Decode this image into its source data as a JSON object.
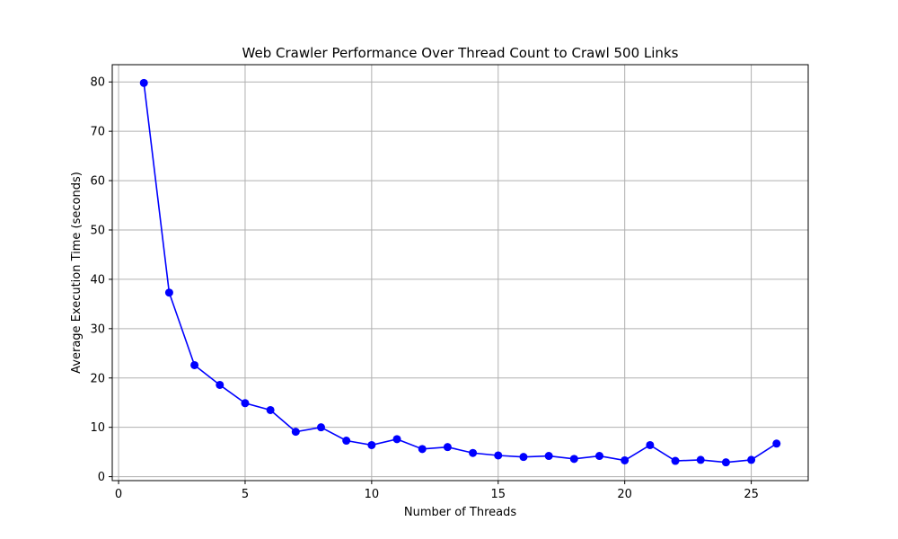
{
  "chart_data": {
    "type": "line",
    "title": "Web Crawler Performance Over Thread Count to Crawl 500 Links",
    "xlabel": "Number of Threads",
    "ylabel": "Average Execution Time (seconds)",
    "xlim": [
      -0.25,
      27.25
    ],
    "ylim": [
      -0.8,
      83.5
    ],
    "xticks": [
      0,
      5,
      10,
      15,
      20,
      25
    ],
    "yticks": [
      0,
      10,
      20,
      30,
      40,
      50,
      60,
      70,
      80
    ],
    "grid": true,
    "line_color": "#0000ff",
    "marker_color": "#0000ff",
    "x": [
      1,
      2,
      3,
      4,
      5,
      6,
      7,
      8,
      9,
      10,
      11,
      12,
      13,
      14,
      15,
      16,
      17,
      18,
      19,
      20,
      21,
      22,
      23,
      24,
      25,
      26
    ],
    "y": [
      79.8,
      37.3,
      22.6,
      18.6,
      14.9,
      13.5,
      9.1,
      10.0,
      7.3,
      6.4,
      7.6,
      5.6,
      6.0,
      4.8,
      4.3,
      4.0,
      4.2,
      3.6,
      4.2,
      3.3,
      6.4,
      3.2,
      3.4,
      2.9,
      3.4,
      6.7
    ]
  }
}
